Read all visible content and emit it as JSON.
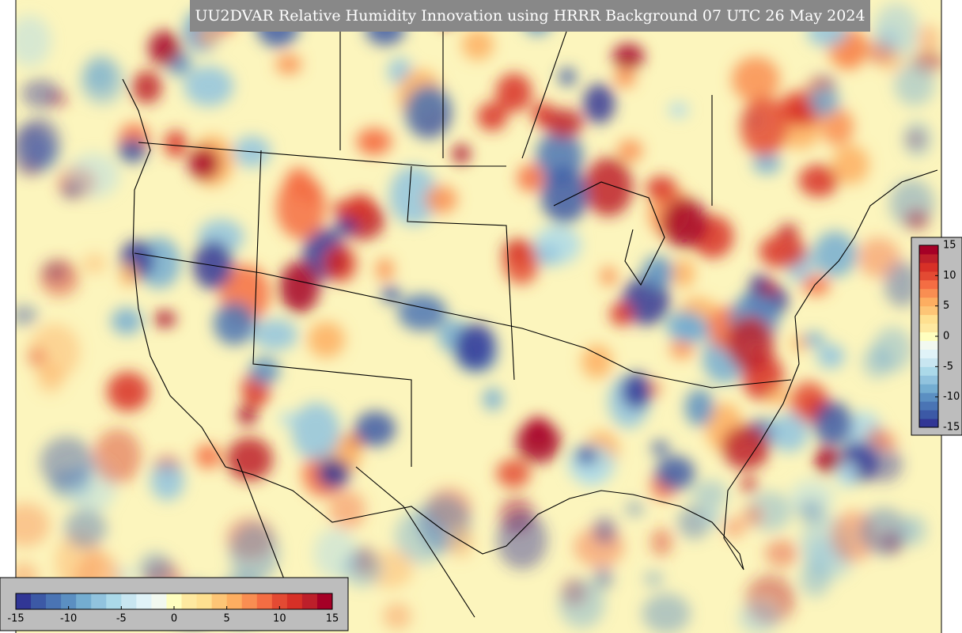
{
  "title": "UU2DVAR Relative Humidity Innovation using HRRR Background 07 UTC 26 May 2024",
  "colors": [
    "#313695",
    "#3c59a6",
    "#4a74b4",
    "#5b8fc2",
    "#74add1",
    "#91c3de",
    "#abd9e9",
    "#c8e6f1",
    "#e0f3f8",
    "#f2f9f0",
    "#ffffbf",
    "#fee9a0",
    "#fee090",
    "#fdc576",
    "#fdae61",
    "#f98e52",
    "#f46d43",
    "#e34a33",
    "#d73027",
    "#bd1f2a",
    "#a50026"
  ],
  "colorbars": [
    {
      "orientation": "horizontal",
      "lim": [
        -15,
        15
      ],
      "ticks": [
        -15,
        -10,
        -5,
        0,
        5,
        10,
        15
      ]
    },
    {
      "orientation": "vertical",
      "lim": [
        -15,
        15
      ],
      "ticks": [
        15,
        10,
        5,
        0,
        -5,
        -10,
        -15
      ]
    }
  ]
}
